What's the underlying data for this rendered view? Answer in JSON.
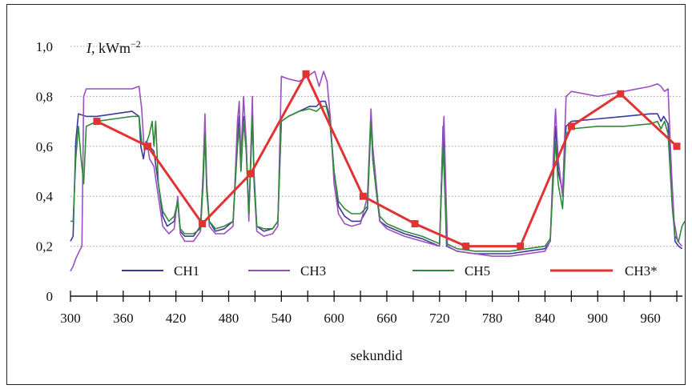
{
  "chart_data": {
    "type": "line",
    "title": "",
    "ylabel_var": "I",
    "ylabel_unit": ", kWm",
    "ylabel_exp": "−2",
    "xlabel": "sekundid",
    "xlim": [
      300,
      1000
    ],
    "ylim": [
      0,
      1.0
    ],
    "x_ticks": [
      300,
      360,
      420,
      480,
      540,
      600,
      660,
      720,
      780,
      840,
      900,
      960
    ],
    "x_tick_labels": [
      "300",
      "360",
      "420",
      "480",
      "540",
      "600",
      "660",
      "720",
      "780",
      "840",
      "900",
      "960"
    ],
    "y_ticks": [
      0,
      0.2,
      0.4,
      0.6,
      0.8,
      1.0
    ],
    "y_tick_labels": [
      "0",
      "0,2",
      "0,4",
      "0,6",
      "0,8",
      "1,0"
    ],
    "grid": "horizontal-dotted",
    "legend_position": "bottom",
    "series": [
      {
        "name": "CH1",
        "color": "#3a3a9a",
        "points": [
          [
            300,
            0.22
          ],
          [
            303,
            0.24
          ],
          [
            306,
            0.62
          ],
          [
            309,
            0.73
          ],
          [
            318,
            0.72
          ],
          [
            330,
            0.72
          ],
          [
            350,
            0.73
          ],
          [
            370,
            0.74
          ],
          [
            378,
            0.72
          ],
          [
            380,
            0.6
          ],
          [
            383,
            0.55
          ],
          [
            386,
            0.62
          ],
          [
            390,
            0.6
          ],
          [
            395,
            0.58
          ],
          [
            400,
            0.45
          ],
          [
            405,
            0.32
          ],
          [
            410,
            0.28
          ],
          [
            418,
            0.3
          ],
          [
            422,
            0.38
          ],
          [
            425,
            0.26
          ],
          [
            430,
            0.24
          ],
          [
            440,
            0.24
          ],
          [
            448,
            0.28
          ],
          [
            451,
            0.5
          ],
          [
            453,
            0.7
          ],
          [
            455,
            0.45
          ],
          [
            458,
            0.3
          ],
          [
            465,
            0.26
          ],
          [
            475,
            0.27
          ],
          [
            485,
            0.3
          ],
          [
            490,
            0.62
          ],
          [
            492,
            0.72
          ],
          [
            494,
            0.5
          ],
          [
            497,
            0.72
          ],
          [
            500,
            0.6
          ],
          [
            503,
            0.33
          ],
          [
            507,
            0.72
          ],
          [
            509,
            0.48
          ],
          [
            512,
            0.28
          ],
          [
            520,
            0.26
          ],
          [
            530,
            0.27
          ],
          [
            536,
            0.3
          ],
          [
            540,
            0.7
          ],
          [
            548,
            0.72
          ],
          [
            560,
            0.74
          ],
          [
            572,
            0.76
          ],
          [
            580,
            0.76
          ],
          [
            585,
            0.78
          ],
          [
            590,
            0.78
          ],
          [
            595,
            0.72
          ],
          [
            600,
            0.5
          ],
          [
            605,
            0.36
          ],
          [
            612,
            0.32
          ],
          [
            620,
            0.3
          ],
          [
            630,
            0.3
          ],
          [
            638,
            0.35
          ],
          [
            642,
            0.73
          ],
          [
            644,
            0.55
          ],
          [
            648,
            0.42
          ],
          [
            652,
            0.3
          ],
          [
            660,
            0.28
          ],
          [
            680,
            0.25
          ],
          [
            700,
            0.23
          ],
          [
            720,
            0.2
          ],
          [
            724,
            0.68
          ],
          [
            726,
            0.45
          ],
          [
            728,
            0.2
          ],
          [
            740,
            0.18
          ],
          [
            760,
            0.17
          ],
          [
            780,
            0.17
          ],
          [
            800,
            0.17
          ],
          [
            820,
            0.18
          ],
          [
            840,
            0.19
          ],
          [
            846,
            0.22
          ],
          [
            850,
            0.55
          ],
          [
            852,
            0.68
          ],
          [
            855,
            0.5
          ],
          [
            860,
            0.42
          ],
          [
            864,
            0.68
          ],
          [
            870,
            0.7
          ],
          [
            900,
            0.71
          ],
          [
            930,
            0.72
          ],
          [
            960,
            0.73
          ],
          [
            968,
            0.73
          ],
          [
            972,
            0.7
          ],
          [
            975,
            0.72
          ],
          [
            980,
            0.69
          ],
          [
            985,
            0.4
          ],
          [
            988,
            0.22
          ],
          [
            992,
            0.2
          ],
          [
            996,
            0.19
          ]
        ]
      },
      {
        "name": "CH3",
        "color": "#9b4fc0",
        "points": [
          [
            300,
            0.1
          ],
          [
            303,
            0.12
          ],
          [
            306,
            0.15
          ],
          [
            310,
            0.18
          ],
          [
            313,
            0.2
          ],
          [
            315,
            0.8
          ],
          [
            318,
            0.83
          ],
          [
            330,
            0.83
          ],
          [
            350,
            0.83
          ],
          [
            370,
            0.83
          ],
          [
            378,
            0.84
          ],
          [
            381,
            0.75
          ],
          [
            384,
            0.58
          ],
          [
            387,
            0.62
          ],
          [
            390,
            0.55
          ],
          [
            395,
            0.52
          ],
          [
            400,
            0.4
          ],
          [
            405,
            0.28
          ],
          [
            412,
            0.25
          ],
          [
            418,
            0.27
          ],
          [
            422,
            0.4
          ],
          [
            425,
            0.25
          ],
          [
            430,
            0.22
          ],
          [
            440,
            0.22
          ],
          [
            448,
            0.26
          ],
          [
            451,
            0.5
          ],
          [
            453,
            0.73
          ],
          [
            455,
            0.45
          ],
          [
            458,
            0.28
          ],
          [
            465,
            0.25
          ],
          [
            475,
            0.25
          ],
          [
            485,
            0.28
          ],
          [
            490,
            0.7
          ],
          [
            492,
            0.78
          ],
          [
            494,
            0.55
          ],
          [
            497,
            0.8
          ],
          [
            500,
            0.62
          ],
          [
            503,
            0.3
          ],
          [
            507,
            0.8
          ],
          [
            509,
            0.45
          ],
          [
            512,
            0.26
          ],
          [
            520,
            0.24
          ],
          [
            530,
            0.25
          ],
          [
            536,
            0.28
          ],
          [
            540,
            0.88
          ],
          [
            548,
            0.87
          ],
          [
            560,
            0.86
          ],
          [
            570,
            0.88
          ],
          [
            578,
            0.9
          ],
          [
            583,
            0.84
          ],
          [
            588,
            0.9
          ],
          [
            592,
            0.86
          ],
          [
            596,
            0.7
          ],
          [
            600,
            0.45
          ],
          [
            605,
            0.33
          ],
          [
            612,
            0.29
          ],
          [
            620,
            0.28
          ],
          [
            630,
            0.29
          ],
          [
            638,
            0.4
          ],
          [
            642,
            0.75
          ],
          [
            644,
            0.6
          ],
          [
            648,
            0.45
          ],
          [
            652,
            0.3
          ],
          [
            660,
            0.27
          ],
          [
            680,
            0.24
          ],
          [
            700,
            0.22
          ],
          [
            720,
            0.2
          ],
          [
            723,
            0.55
          ],
          [
            725,
            0.72
          ],
          [
            727,
            0.45
          ],
          [
            729,
            0.2
          ],
          [
            740,
            0.18
          ],
          [
            760,
            0.17
          ],
          [
            780,
            0.16
          ],
          [
            800,
            0.16
          ],
          [
            820,
            0.17
          ],
          [
            840,
            0.18
          ],
          [
            846,
            0.22
          ],
          [
            850,
            0.6
          ],
          [
            852,
            0.75
          ],
          [
            855,
            0.55
          ],
          [
            860,
            0.4
          ],
          [
            864,
            0.8
          ],
          [
            870,
            0.82
          ],
          [
            900,
            0.8
          ],
          [
            930,
            0.82
          ],
          [
            960,
            0.84
          ],
          [
            968,
            0.85
          ],
          [
            972,
            0.84
          ],
          [
            976,
            0.82
          ],
          [
            980,
            0.83
          ],
          [
            984,
            0.5
          ],
          [
            987,
            0.3
          ],
          [
            991,
            0.22
          ],
          [
            996,
            0.2
          ]
        ]
      },
      {
        "name": "CH5",
        "color": "#2f8a3a",
        "points": [
          [
            300,
            0.3
          ],
          [
            303,
            0.3
          ],
          [
            306,
            0.55
          ],
          [
            309,
            0.68
          ],
          [
            312,
            0.55
          ],
          [
            315,
            0.45
          ],
          [
            318,
            0.68
          ],
          [
            330,
            0.7
          ],
          [
            350,
            0.71
          ],
          [
            370,
            0.72
          ],
          [
            378,
            0.72
          ],
          [
            381,
            0.62
          ],
          [
            384,
            0.6
          ],
          [
            387,
            0.62
          ],
          [
            390,
            0.65
          ],
          [
            393,
            0.7
          ],
          [
            395,
            0.6
          ],
          [
            397,
            0.7
          ],
          [
            400,
            0.45
          ],
          [
            405,
            0.34
          ],
          [
            412,
            0.3
          ],
          [
            418,
            0.32
          ],
          [
            422,
            0.38
          ],
          [
            425,
            0.27
          ],
          [
            430,
            0.25
          ],
          [
            440,
            0.25
          ],
          [
            448,
            0.27
          ],
          [
            451,
            0.45
          ],
          [
            453,
            0.65
          ],
          [
            455,
            0.42
          ],
          [
            458,
            0.3
          ],
          [
            465,
            0.27
          ],
          [
            475,
            0.28
          ],
          [
            485,
            0.3
          ],
          [
            490,
            0.6
          ],
          [
            492,
            0.68
          ],
          [
            494,
            0.5
          ],
          [
            497,
            0.7
          ],
          [
            500,
            0.58
          ],
          [
            503,
            0.33
          ],
          [
            507,
            0.72
          ],
          [
            509,
            0.45
          ],
          [
            512,
            0.28
          ],
          [
            520,
            0.27
          ],
          [
            530,
            0.27
          ],
          [
            536,
            0.3
          ],
          [
            540,
            0.7
          ],
          [
            548,
            0.72
          ],
          [
            560,
            0.74
          ],
          [
            572,
            0.75
          ],
          [
            580,
            0.74
          ],
          [
            586,
            0.76
          ],
          [
            591,
            0.76
          ],
          [
            595,
            0.7
          ],
          [
            600,
            0.5
          ],
          [
            605,
            0.38
          ],
          [
            612,
            0.35
          ],
          [
            620,
            0.33
          ],
          [
            630,
            0.33
          ],
          [
            638,
            0.36
          ],
          [
            642,
            0.7
          ],
          [
            644,
            0.55
          ],
          [
            648,
            0.42
          ],
          [
            652,
            0.32
          ],
          [
            660,
            0.29
          ],
          [
            680,
            0.26
          ],
          [
            700,
            0.24
          ],
          [
            720,
            0.21
          ],
          [
            724,
            0.6
          ],
          [
            726,
            0.42
          ],
          [
            728,
            0.21
          ],
          [
            740,
            0.19
          ],
          [
            760,
            0.18
          ],
          [
            780,
            0.18
          ],
          [
            800,
            0.18
          ],
          [
            820,
            0.19
          ],
          [
            840,
            0.2
          ],
          [
            846,
            0.23
          ],
          [
            850,
            0.5
          ],
          [
            852,
            0.62
          ],
          [
            855,
            0.45
          ],
          [
            860,
            0.35
          ],
          [
            864,
            0.65
          ],
          [
            870,
            0.67
          ],
          [
            900,
            0.68
          ],
          [
            930,
            0.68
          ],
          [
            960,
            0.69
          ],
          [
            968,
            0.7
          ],
          [
            972,
            0.67
          ],
          [
            976,
            0.7
          ],
          [
            980,
            0.65
          ],
          [
            985,
            0.35
          ],
          [
            988,
            0.24
          ],
          [
            992,
            0.22
          ],
          [
            996,
            0.28
          ],
          [
            999,
            0.3
          ]
        ]
      },
      {
        "name": "CH3*",
        "color": "#e23333",
        "markers": true,
        "points": [
          [
            330,
            0.7
          ],
          [
            388,
            0.6
          ],
          [
            450,
            0.29
          ],
          [
            505,
            0.49
          ],
          [
            568,
            0.89
          ],
          [
            633,
            0.4
          ],
          [
            692,
            0.29
          ],
          [
            750,
            0.2
          ],
          [
            812,
            0.2
          ],
          [
            870,
            0.68
          ],
          [
            926,
            0.81
          ],
          [
            990,
            0.6
          ]
        ]
      }
    ]
  }
}
